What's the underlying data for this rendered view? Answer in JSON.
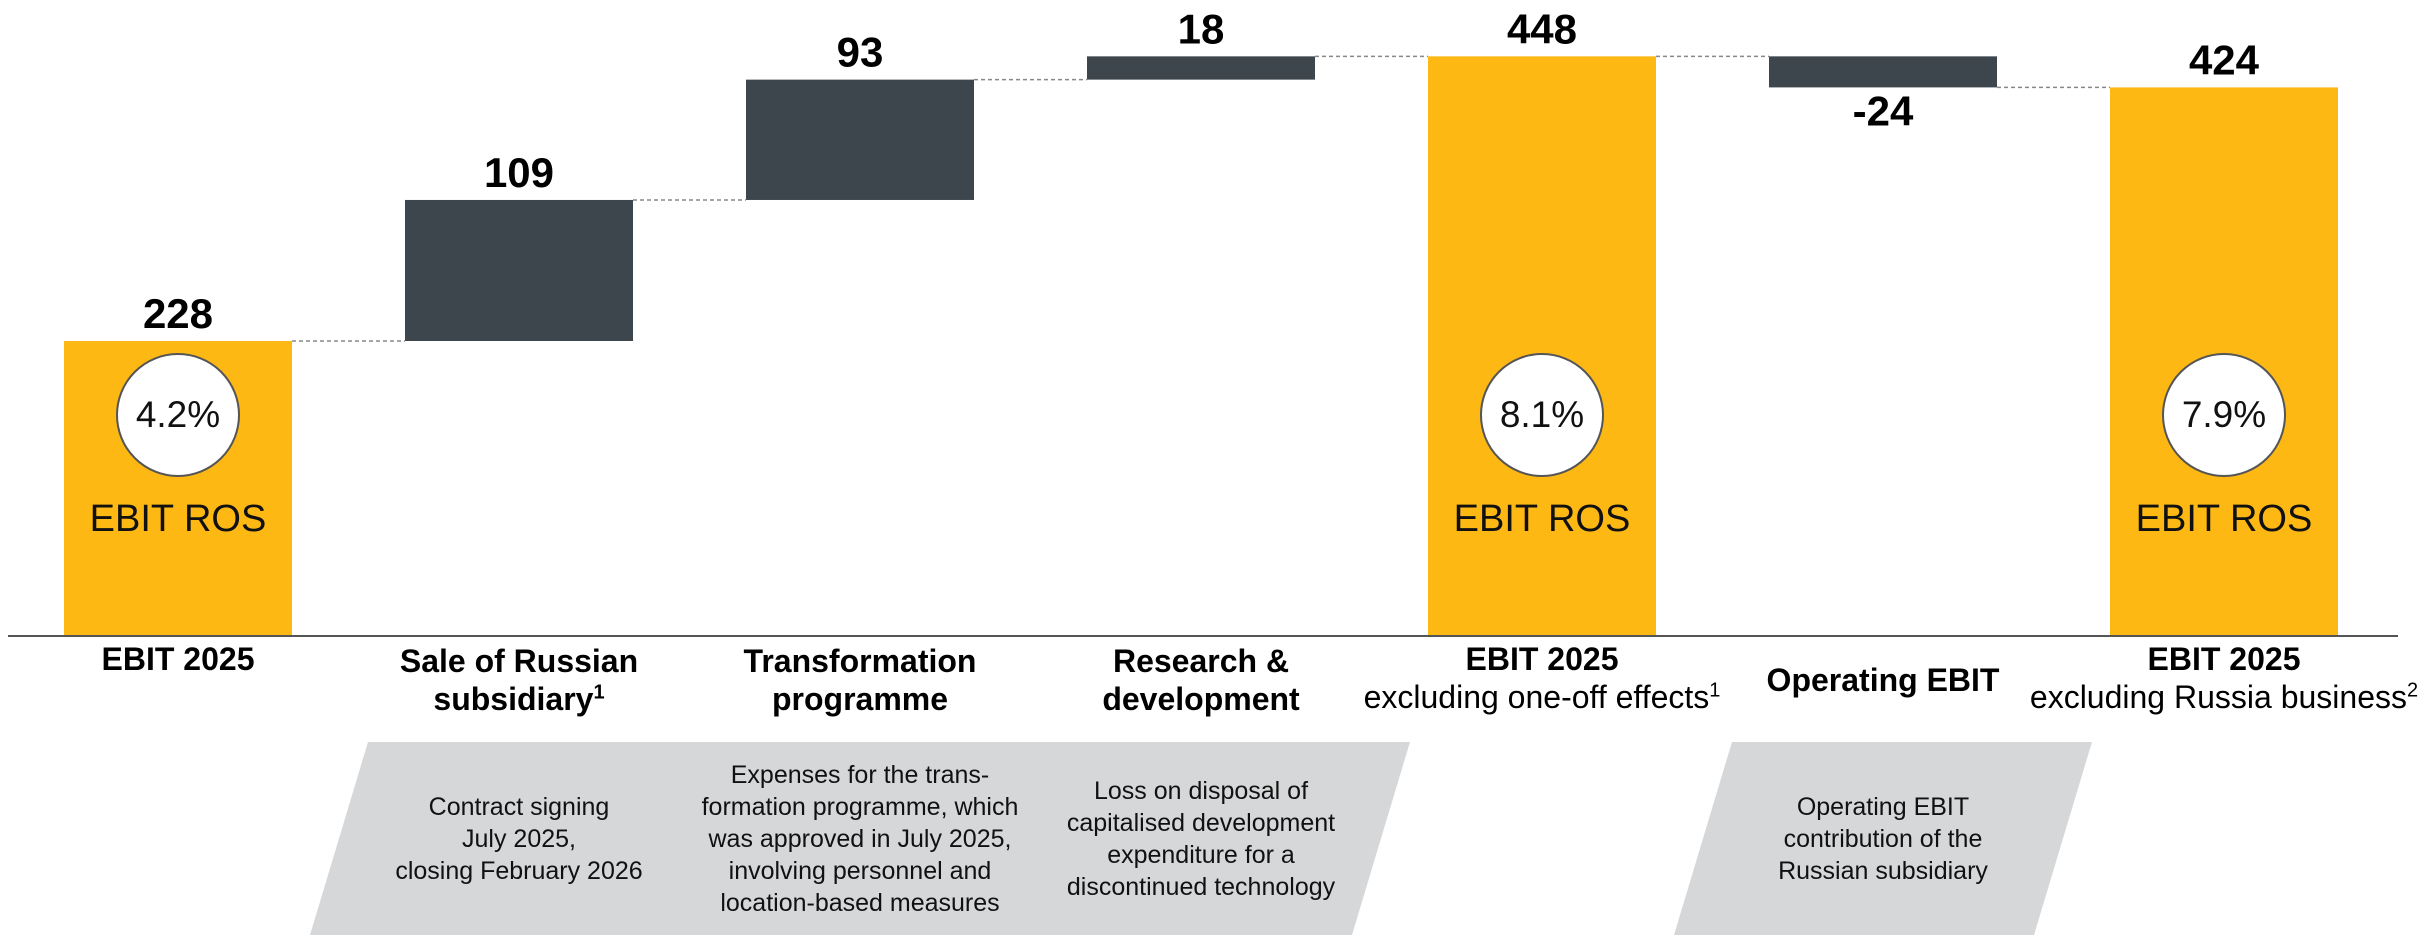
{
  "chart_data": {
    "type": "waterfall",
    "categories": [
      "EBIT 2025",
      "Sale of Russian subsidiary",
      "Transformation programme",
      "Research & development",
      "EBIT 2025",
      "Operating EBIT",
      "EBIT 2025"
    ],
    "category_sublabels": [
      null,
      null,
      null,
      null,
      "excluding one-off effects",
      null,
      "excluding Russia business"
    ],
    "footnotes": [
      null,
      "1",
      null,
      null,
      "1",
      null,
      "2"
    ],
    "values": [
      228,
      109,
      93,
      18,
      448,
      -24,
      424
    ],
    "measure": [
      "total",
      "relative",
      "relative",
      "relative",
      "total",
      "relative",
      "total"
    ],
    "colors": {
      "total": "#fdb813",
      "relative": "#3d464d"
    },
    "ros_values": [
      4.2,
      null,
      null,
      null,
      8.1,
      null,
      7.9
    ],
    "ros_value_labels": [
      "4.2%",
      null,
      null,
      null,
      "8.1%",
      null,
      "7.9%"
    ],
    "ros_label": "EBIT ROS",
    "notes": [
      null,
      "Contract signing\nJuly 2025,\nclosing February 2026",
      "Expenses for the trans-\nformation programme, which\nwas approved in July 2025,\ninvolving personnel and\nlocation-based measures",
      "Loss on disposal of\ncapitalised development\nexpenditure for a\ndiscontinued technology",
      null,
      "Operating EBIT\ncontribution of the\nRussian subsidiary",
      null
    ],
    "ylim": [
      0,
      490
    ]
  }
}
